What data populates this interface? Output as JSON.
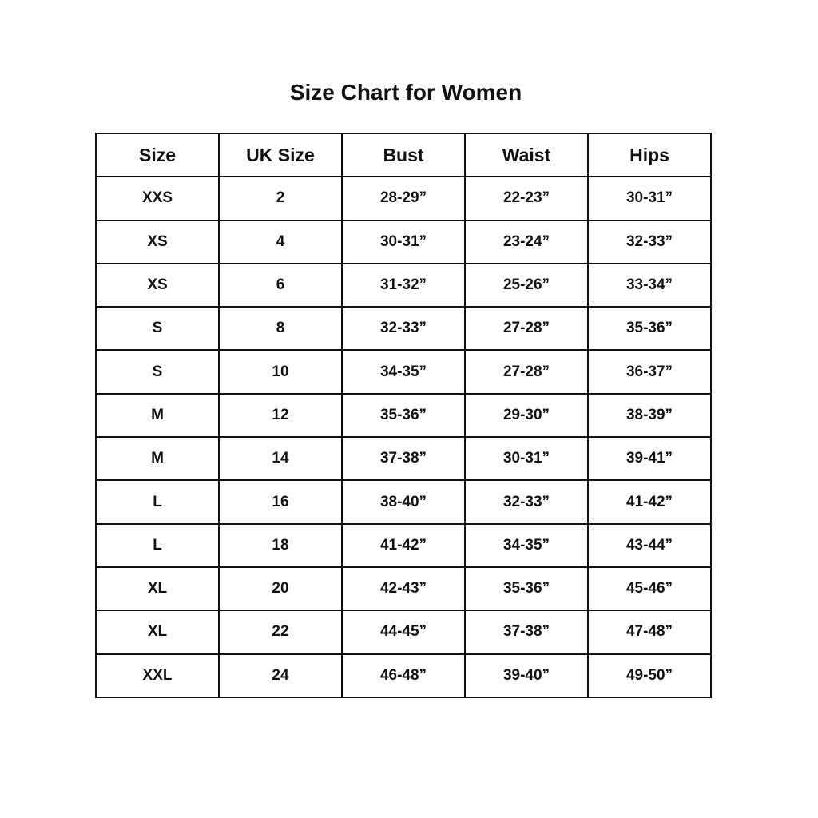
{
  "title": "Size Chart for Women",
  "columns": [
    "Size",
    "UK Size",
    "Bust",
    "Waist",
    "Hips"
  ],
  "rows": [
    [
      "XXS",
      "2",
      "28-29”",
      "22-23”",
      "30-31”"
    ],
    [
      "XS",
      "4",
      "30-31”",
      "23-24”",
      "32-33”"
    ],
    [
      "XS",
      "6",
      "31-32”",
      "25-26”",
      "33-34”"
    ],
    [
      "S",
      "8",
      "32-33”",
      "27-28”",
      "35-36”"
    ],
    [
      "S",
      "10",
      "34-35”",
      "27-28”",
      "36-37”"
    ],
    [
      "M",
      "12",
      "35-36”",
      "29-30”",
      "38-39”"
    ],
    [
      "M",
      "14",
      "37-38”",
      "30-31”",
      "39-41”"
    ],
    [
      "L",
      "16",
      "38-40”",
      "32-33”",
      "41-42”"
    ],
    [
      "L",
      "18",
      "41-42”",
      "34-35”",
      "43-44”"
    ],
    [
      "XL",
      "20",
      "42-43”",
      "35-36”",
      "45-46”"
    ],
    [
      "XL",
      "22",
      "44-45”",
      "37-38”",
      "47-48”"
    ],
    [
      "XXL",
      "24",
      "46-48”",
      "39-40”",
      "49-50”"
    ]
  ]
}
